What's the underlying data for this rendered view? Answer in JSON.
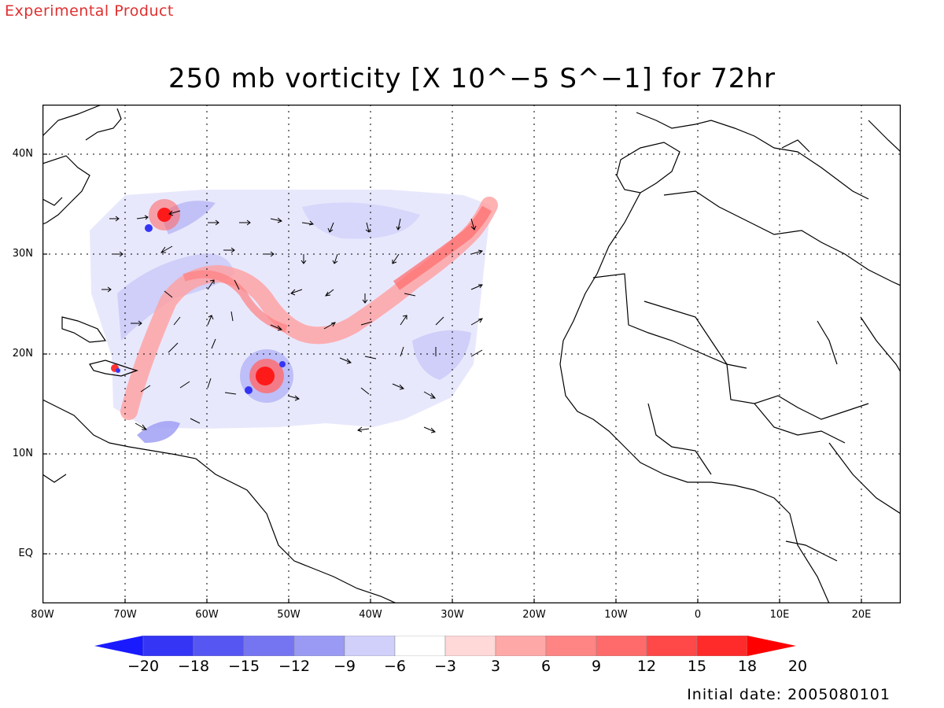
{
  "header": {
    "experimental_label": "Experimental Product",
    "title": "250 mb vorticity [X 10^−5 S^−1] for 72hr"
  },
  "map": {
    "lat_labels": [
      "40N",
      "30N",
      "20N",
      "10N",
      "EQ"
    ],
    "lon_labels": [
      "80W",
      "70W",
      "60W",
      "50W",
      "40W",
      "30W",
      "20W",
      "10W",
      "0",
      "10E",
      "20E"
    ]
  },
  "colorbar": {
    "labels": [
      "−20",
      "−18",
      "−15",
      "−12",
      "−9",
      "−6",
      "−3",
      "3",
      "6",
      "9",
      "12",
      "15",
      "18",
      "20"
    ],
    "colors": [
      "#1a1aff",
      "#3535f5",
      "#5656f2",
      "#7575f2",
      "#9a9af4",
      "#d0d0fa",
      "#ffffff",
      "#ffd8d8",
      "#ffa8a8",
      "#ff8585",
      "#ff6a6a",
      "#ff4848",
      "#ff2a2a",
      "#ff0000"
    ]
  },
  "footer": {
    "initial_date": "Initial date: 2005080101"
  }
}
